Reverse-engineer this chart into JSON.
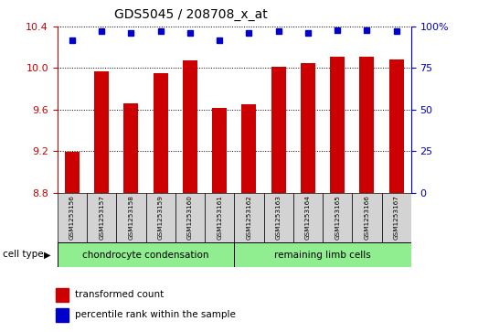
{
  "title": "GDS5045 / 208708_x_at",
  "samples": [
    "GSM1253156",
    "GSM1253157",
    "GSM1253158",
    "GSM1253159",
    "GSM1253160",
    "GSM1253161",
    "GSM1253162",
    "GSM1253163",
    "GSM1253164",
    "GSM1253165",
    "GSM1253166",
    "GSM1253167"
  ],
  "transformed_count": [
    9.19,
    9.97,
    9.66,
    9.95,
    10.07,
    9.62,
    9.65,
    10.01,
    10.05,
    10.11,
    10.11,
    10.08
  ],
  "percentile_rank": [
    92,
    97,
    96,
    97,
    96,
    92,
    96,
    97,
    96,
    98,
    98,
    97
  ],
  "ylim_left": [
    8.8,
    10.4
  ],
  "ylim_right": [
    0,
    100
  ],
  "yticks_left": [
    8.8,
    9.2,
    9.6,
    10.0,
    10.4
  ],
  "yticks_right": [
    0,
    25,
    50,
    75,
    100
  ],
  "bar_color": "#cc0000",
  "dot_color": "#0000cc",
  "group1_label": "chondrocyte condensation",
  "group2_label": "remaining limb cells",
  "group1_count": 6,
  "group2_count": 6,
  "cell_type_label": "cell type",
  "legend_bar_label": "transformed count",
  "legend_dot_label": "percentile rank within the sample",
  "group1_bg": "#90ee90",
  "group2_bg": "#90ee90",
  "sample_bg": "#d3d3d3",
  "axis_left_color": "#cc0000",
  "axis_right_color": "#0000cc",
  "title_fontsize": 10,
  "bar_width": 0.5
}
